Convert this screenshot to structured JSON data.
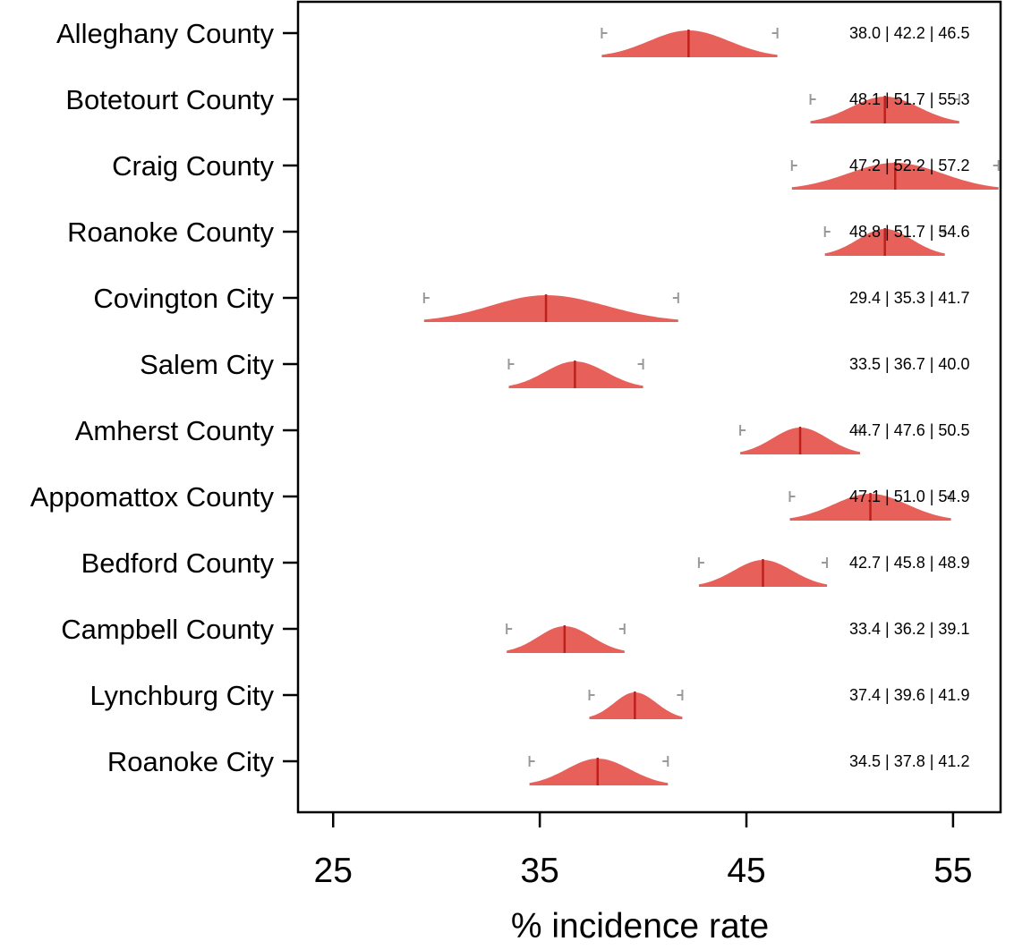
{
  "chart_data": {
    "type": "density-ridge",
    "xlabel": "% incidence rate",
    "xlim": [
      23.3,
      57.3
    ],
    "xticks": [
      25,
      35,
      45,
      55
    ],
    "colors": {
      "fill": "#e8605a",
      "median": "#c0201c",
      "whisker": "#999999"
    },
    "rows": [
      {
        "category": "Alleghany County",
        "low": 38.0,
        "median": 42.2,
        "high": 46.5,
        "ci_label": "38.0 | 42.2 | 46.5"
      },
      {
        "category": "Botetourt County",
        "low": 48.1,
        "median": 51.7,
        "high": 55.3,
        "ci_label": "48.1 | 51.7 | 55.3"
      },
      {
        "category": "Craig County",
        "low": 47.2,
        "median": 52.2,
        "high": 57.2,
        "ci_label": "47.2 | 52.2 | 57.2"
      },
      {
        "category": "Roanoke County",
        "low": 48.8,
        "median": 51.7,
        "high": 54.6,
        "ci_label": "48.8 | 51.7 | 54.6"
      },
      {
        "category": "Covington City",
        "low": 29.4,
        "median": 35.3,
        "high": 41.7,
        "ci_label": "29.4 | 35.3 | 41.7"
      },
      {
        "category": "Salem City",
        "low": 33.5,
        "median": 36.7,
        "high": 40.0,
        "ci_label": "33.5 | 36.7 | 40.0"
      },
      {
        "category": "Amherst County",
        "low": 44.7,
        "median": 47.6,
        "high": 50.5,
        "ci_label": "44.7 | 47.6 | 50.5"
      },
      {
        "category": "Appomattox County",
        "low": 47.1,
        "median": 51.0,
        "high": 54.9,
        "ci_label": "47.1 | 51.0 | 54.9"
      },
      {
        "category": "Bedford County",
        "low": 42.7,
        "median": 45.8,
        "high": 48.9,
        "ci_label": "42.7 | 45.8 | 48.9"
      },
      {
        "category": "Campbell County",
        "low": 33.4,
        "median": 36.2,
        "high": 39.1,
        "ci_label": "33.4 | 36.2 | 39.1"
      },
      {
        "category": "Lynchburg City",
        "low": 37.4,
        "median": 39.6,
        "high": 41.9,
        "ci_label": "37.4 | 39.6 | 41.9"
      },
      {
        "category": "Roanoke City",
        "low": 34.5,
        "median": 37.8,
        "high": 41.2,
        "ci_label": "34.5 | 37.8 | 41.2"
      }
    ]
  }
}
